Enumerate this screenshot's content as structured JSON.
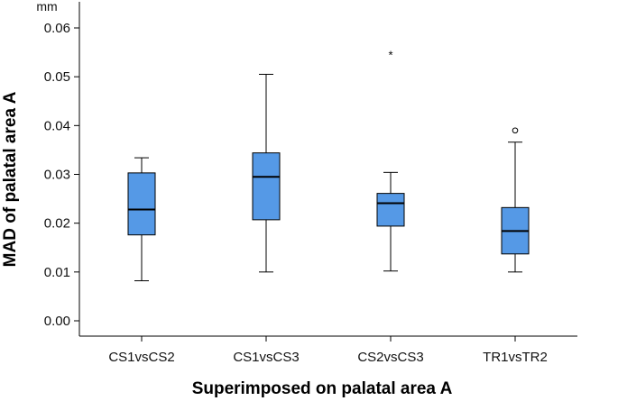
{
  "chart_data": {
    "type": "boxplot",
    "unit": "mm",
    "ylabel": "MAD of palatal area A",
    "xlabel": "Superimposed on palatal area A",
    "ylim": [
      0.0,
      0.065
    ],
    "yticks": [
      "0.00",
      "0.01",
      "0.02",
      "0.03",
      "0.04",
      "0.05",
      "0.06"
    ],
    "ytick_values": [
      0.0,
      0.01,
      0.02,
      0.03,
      0.04,
      0.05,
      0.06
    ],
    "box_color": "#5599e6",
    "categories": [
      "CS1vsCS2",
      "CS1vsCS3",
      "CS2vsCS3",
      "TR1vsTR2"
    ],
    "boxes": [
      {
        "name": "CS1vsCS2",
        "whisker_low": 0.0082,
        "q1": 0.0176,
        "median": 0.0228,
        "q3": 0.0303,
        "whisker_high": 0.0334,
        "outliers": [],
        "extremes": []
      },
      {
        "name": "CS1vsCS3",
        "whisker_low": 0.01,
        "q1": 0.0207,
        "median": 0.0295,
        "q3": 0.0344,
        "whisker_high": 0.0505,
        "outliers": [],
        "extremes": []
      },
      {
        "name": "CS2vsCS3",
        "whisker_low": 0.0102,
        "q1": 0.0194,
        "median": 0.0241,
        "q3": 0.0261,
        "whisker_high": 0.0304,
        "outliers": [],
        "extremes": [
          0.0546
        ]
      },
      {
        "name": "TR1vsTR2",
        "whisker_low": 0.01,
        "q1": 0.0137,
        "median": 0.0184,
        "q3": 0.0232,
        "whisker_high": 0.0366,
        "outliers": [
          0.039
        ],
        "extremes": []
      }
    ]
  }
}
